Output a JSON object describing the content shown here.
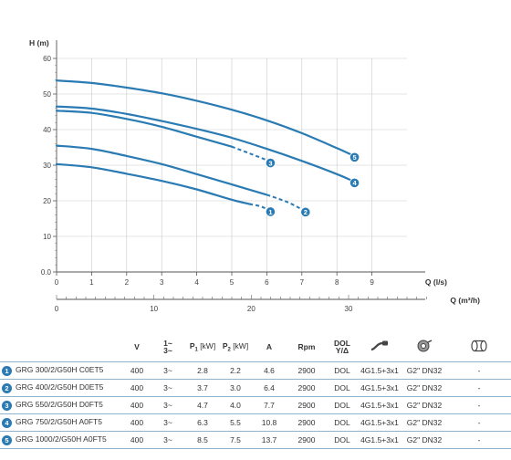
{
  "chart_data": {
    "type": "line",
    "ylabel": "H (m)",
    "xlabel": "Q (l/s)",
    "x2label": "Q (m³/h)",
    "xlim": [
      0,
      10
    ],
    "ylim": [
      0,
      60
    ],
    "yticks": [
      "0.0",
      "10",
      "20",
      "30",
      "40",
      "50",
      "60"
    ],
    "xticks": [
      "0",
      "1",
      "2",
      "3",
      "4",
      "5",
      "6",
      "7",
      "8",
      "9"
    ],
    "x2ticks": [
      "0",
      "10",
      "20",
      "30"
    ],
    "grid": true,
    "series": [
      {
        "name": "1",
        "color": "#2a7bb3",
        "solid": [
          [
            0,
            30.3
          ],
          [
            1,
            29.4
          ],
          [
            2,
            27.6
          ],
          [
            3,
            25.6
          ],
          [
            4,
            23.2
          ],
          [
            5,
            20.3
          ],
          [
            5.5,
            19.1
          ]
        ],
        "dashed": [
          [
            5.5,
            19.1
          ],
          [
            5.8,
            18.5
          ],
          [
            6,
            17.7
          ]
        ]
      },
      {
        "name": "2",
        "color": "#2a7bb3",
        "solid": [
          [
            0,
            35.5
          ],
          [
            1,
            34.6
          ],
          [
            2,
            32.6
          ],
          [
            3,
            30.3
          ],
          [
            4,
            27.5
          ],
          [
            5,
            24.6
          ],
          [
            6,
            21.7
          ]
        ],
        "dashed": [
          [
            6,
            21.7
          ],
          [
            6.6,
            19.6
          ],
          [
            7,
            17.6
          ]
        ]
      },
      {
        "name": "3",
        "color": "#2a7bb3",
        "solid": [
          [
            0,
            45.3
          ],
          [
            1,
            44.7
          ],
          [
            2,
            43.0
          ],
          [
            3,
            40.8
          ],
          [
            4,
            38.0
          ],
          [
            5,
            35.2
          ]
        ],
        "dashed": [
          [
            5,
            35.2
          ],
          [
            5.7,
            32.6
          ],
          [
            6,
            31.4
          ]
        ]
      },
      {
        "name": "4",
        "color": "#2a7bb3",
        "solid": [
          [
            0,
            46.5
          ],
          [
            1,
            45.9
          ],
          [
            2,
            44.4
          ],
          [
            3,
            42.4
          ],
          [
            4,
            40.2
          ],
          [
            5,
            37.7
          ],
          [
            6,
            34.6
          ],
          [
            7,
            31.2
          ],
          [
            8,
            27.5
          ],
          [
            8.4,
            25.8
          ]
        ],
        "dashed": []
      },
      {
        "name": "5",
        "color": "#2a7bb3",
        "solid": [
          [
            0,
            53.8
          ],
          [
            1,
            53.1
          ],
          [
            2,
            51.8
          ],
          [
            3,
            50.2
          ],
          [
            4,
            48.1
          ],
          [
            5,
            45.6
          ],
          [
            6,
            42.6
          ],
          [
            7,
            39.0
          ],
          [
            8,
            34.8
          ],
          [
            8.4,
            33.0
          ]
        ],
        "dashed": []
      }
    ]
  },
  "table": {
    "headers": {
      "v": "V",
      "phase_top": "1~",
      "phase_bottom": "3~",
      "p1": "P",
      "p1_sub": "1",
      "p1_unit": " [kW]",
      "p2": "P",
      "p2_sub": "2",
      "p2_unit": " [kW]",
      "a": "A",
      "rpm": "Rpm",
      "dol_top": "DOL",
      "dol_bottom": "Y/Δ"
    },
    "rows": [
      {
        "num": "1",
        "model": "GRG 300/2/G50H C0ET5",
        "v": "400",
        "phase": "3~",
        "p1": "2.8",
        "p2": "2.2",
        "a": "4.6",
        "rpm": "2900",
        "dol": "DOL",
        "cable": "4G1.5+3x1",
        "outlet": "G2\" DN32",
        "extra": "-"
      },
      {
        "num": "2",
        "model": "GRG 400/2/G50H D0ET5",
        "v": "400",
        "phase": "3~",
        "p1": "3.7",
        "p2": "3.0",
        "a": "6.4",
        "rpm": "2900",
        "dol": "DOL",
        "cable": "4G1.5+3x1",
        "outlet": "G2\" DN32",
        "extra": "-"
      },
      {
        "num": "3",
        "model": "GRG 550/2/G50H D0FT5",
        "v": "400",
        "phase": "3~",
        "p1": "4.7",
        "p2": "4.0",
        "a": "7.7",
        "rpm": "2900",
        "dol": "DOL",
        "cable": "4G1.5+3x1",
        "outlet": "G2\" DN32",
        "extra": "-"
      },
      {
        "num": "4",
        "model": "GRG 750/2/G50H A0FT5",
        "v": "400",
        "phase": "3~",
        "p1": "6.3",
        "p2": "5.5",
        "a": "10.8",
        "rpm": "2900",
        "dol": "DOL",
        "cable": "4G1.5+3x1",
        "outlet": "G2\" DN32",
        "extra": "-"
      },
      {
        "num": "5",
        "model": "GRG 1000/2/G50H A0FT5",
        "v": "400",
        "phase": "3~",
        "p1": "8.5",
        "p2": "7.5",
        "a": "13.7",
        "rpm": "2900",
        "dol": "DOL",
        "cable": "4G1.5+3x1",
        "outlet": "G2\" DN32",
        "extra": "-"
      }
    ],
    "icons": {
      "cable": "cable-icon",
      "outlet": "pump-outlet-icon",
      "extra": "coupling-icon"
    }
  }
}
